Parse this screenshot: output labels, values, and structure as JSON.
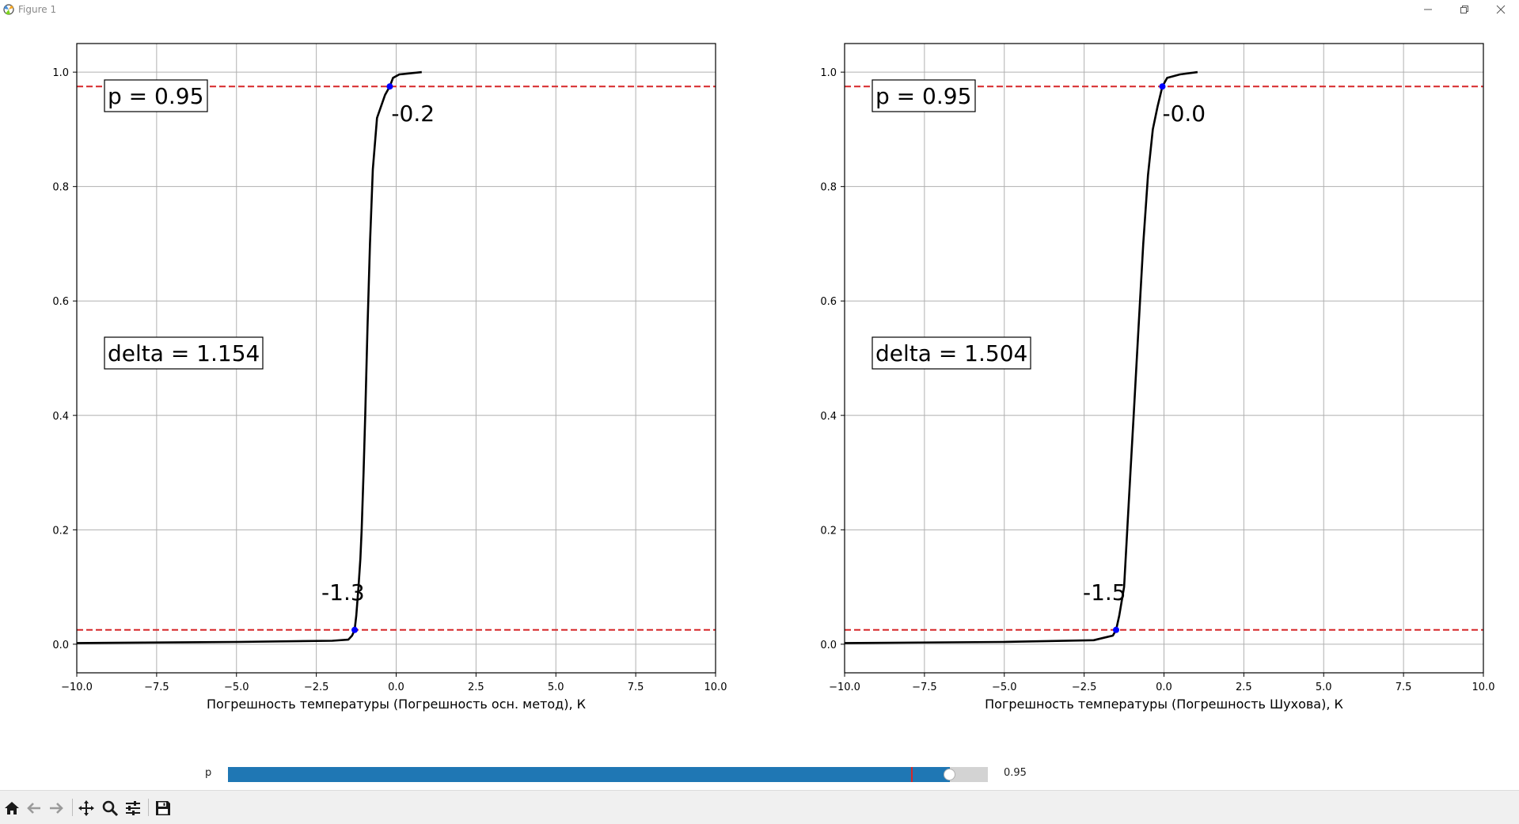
{
  "window": {
    "title": "Figure 1",
    "controls": [
      "minimize",
      "restore",
      "close"
    ]
  },
  "charts": {
    "left": {
      "xlabel": "Погрешность температуры (Погрешность осн. метод), К",
      "p_box": "p = 0.95",
      "delta_box": "delta = 1.154",
      "upper_marker_label": "-0.2",
      "lower_marker_label": "-1.3"
    },
    "right": {
      "xlabel": "Погрешность температуры (Погрешность Шухова), К",
      "p_box": "p = 0.95",
      "delta_box": "delta = 1.504",
      "upper_marker_label": "-0.0",
      "lower_marker_label": "-1.5"
    }
  },
  "chart_data": [
    {
      "type": "line",
      "xlabel": "Погрешность температуры (Погрешность осн. метод), К",
      "ylabel": "",
      "xlim": [
        -10,
        10
      ],
      "ylim": [
        -0.05,
        1.05
      ],
      "xticks": [
        -10,
        -7.5,
        -5,
        -2.5,
        0,
        2.5,
        5,
        7.5,
        10
      ],
      "xtick_labels": [
        "−10.0",
        "−7.5",
        "−5.0",
        "−2.5",
        "0.0",
        "2.5",
        "5.0",
        "7.5",
        "10.0"
      ],
      "yticks": [
        0,
        0.2,
        0.4,
        0.6,
        0.8,
        1.0
      ],
      "ytick_labels": [
        "0.0",
        "0.2",
        "0.4",
        "0.6",
        "0.8",
        "1.0"
      ],
      "grid": true,
      "series": [
        {
          "color": "#000000",
          "points": [
            [
              -10,
              0.002
            ],
            [
              -5,
              0.004
            ],
            [
              -2,
              0.006
            ],
            [
              -1.5,
              0.008
            ],
            [
              -1.38,
              0.015
            ],
            [
              -1.3,
              0.025
            ],
            [
              -1.25,
              0.05
            ],
            [
              -1.18,
              0.1
            ],
            [
              -1.12,
              0.15
            ],
            [
              -1.08,
              0.2
            ],
            [
              -1.02,
              0.3
            ],
            [
              -0.97,
              0.4
            ],
            [
              -0.9,
              0.55
            ],
            [
              -0.82,
              0.7
            ],
            [
              -0.73,
              0.83
            ],
            [
              -0.6,
              0.92
            ],
            [
              -0.35,
              0.96
            ],
            [
              -0.2,
              0.975
            ],
            [
              -0.1,
              0.99
            ],
            [
              0.1,
              0.996
            ],
            [
              0.8,
              1.0
            ]
          ]
        }
      ],
      "hlines": [
        {
          "y": 0.975,
          "color": "#d62728",
          "style": "dashed"
        },
        {
          "y": 0.025,
          "color": "#d62728",
          "style": "dashed"
        }
      ],
      "markers": [
        {
          "x": -0.2,
          "y": 0.975,
          "color": "#0000ff"
        },
        {
          "x": -1.3,
          "y": 0.025,
          "color": "#0000ff"
        }
      ],
      "annotations": [
        "-0.2",
        "-1.3",
        "p = 0.95",
        "delta = 1.154"
      ]
    },
    {
      "type": "line",
      "xlabel": "Погрешность температуры (Погрешность Шухова), К",
      "ylabel": "",
      "xlim": [
        -10,
        10
      ],
      "ylim": [
        -0.05,
        1.05
      ],
      "xticks": [
        -10,
        -7.5,
        -5,
        -2.5,
        0,
        2.5,
        5,
        7.5,
        10
      ],
      "xtick_labels": [
        "−10.0",
        "−7.5",
        "−5.0",
        "−2.5",
        "0.0",
        "2.5",
        "5.0",
        "7.5",
        "10.0"
      ],
      "yticks": [
        0,
        0.2,
        0.4,
        0.6,
        0.8,
        1.0
      ],
      "ytick_labels": [
        "0.0",
        "0.2",
        "0.4",
        "0.6",
        "0.8",
        "1.0"
      ],
      "grid": true,
      "series": [
        {
          "color": "#000000",
          "points": [
            [
              -10,
              0.002
            ],
            [
              -5,
              0.004
            ],
            [
              -2.2,
              0.007
            ],
            [
              -1.6,
              0.015
            ],
            [
              -1.5,
              0.025
            ],
            [
              -1.4,
              0.05
            ],
            [
              -1.25,
              0.1
            ],
            [
              -1.15,
              0.2
            ],
            [
              -1.05,
              0.3
            ],
            [
              -0.95,
              0.4
            ],
            [
              -0.8,
              0.55
            ],
            [
              -0.65,
              0.7
            ],
            [
              -0.5,
              0.82
            ],
            [
              -0.35,
              0.9
            ],
            [
              -0.2,
              0.94
            ],
            [
              -0.05,
              0.975
            ],
            [
              0.1,
              0.99
            ],
            [
              0.5,
              0.996
            ],
            [
              1.05,
              1.0
            ]
          ]
        }
      ],
      "hlines": [
        {
          "y": 0.975,
          "color": "#d62728",
          "style": "dashed"
        },
        {
          "y": 0.025,
          "color": "#d62728",
          "style": "dashed"
        }
      ],
      "markers": [
        {
          "x": -0.05,
          "y": 0.975,
          "color": "#0000ff"
        },
        {
          "x": -1.5,
          "y": 0.025,
          "color": "#0000ff"
        }
      ],
      "annotations": [
        "-0.0",
        "-1.5",
        "p = 0.95",
        "delta = 1.504"
      ]
    }
  ],
  "slider": {
    "label": "p",
    "value_text": "0.95",
    "valmin": 0,
    "valmax": 1,
    "value": 0.95,
    "init_value": 0.9,
    "fill_color": "#1f77b4",
    "track_color": "#d3d3d3"
  },
  "toolbar": {
    "buttons": [
      "home-icon",
      "back-icon",
      "forward-icon",
      "pan-icon",
      "zoom-icon",
      "configure-subplots-icon",
      "save-icon"
    ]
  }
}
